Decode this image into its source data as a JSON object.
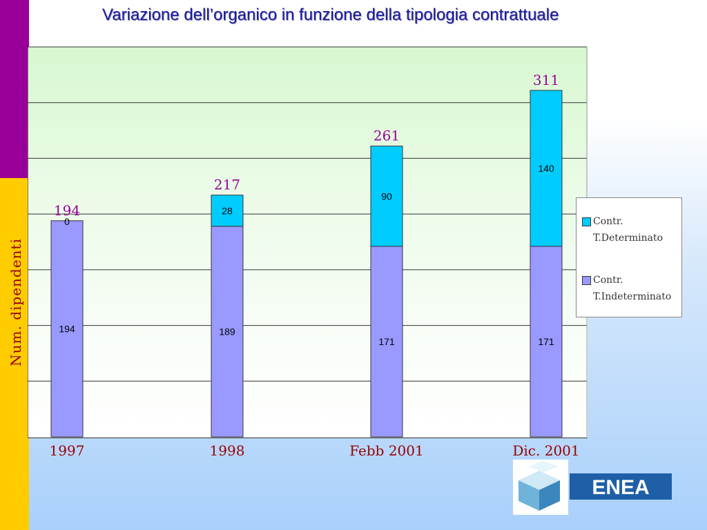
{
  "slide": {
    "title": "Variazione dell’organico in funzione della tipologia contrattuale"
  },
  "colors": {
    "indeterminato": "#9999ff",
    "determinato": "#00ccff",
    "total_label": "#990099",
    "axis_label": "#990000",
    "band_top": "#990099",
    "band_bottom": "#ffcc00"
  },
  "chart_data": {
    "type": "bar",
    "stacked": true,
    "title": "Variazione dell’organico in funzione della tipologia contrattuale",
    "ylabel": "Num.   dipendenti",
    "xlabel": "",
    "categories": [
      "1997",
      "1998",
      "Febb 2001",
      "Dic. 2001"
    ],
    "series": [
      {
        "name": "Contr. T.Indeterminato",
        "values": [
          194,
          189,
          171,
          171
        ]
      },
      {
        "name": "Contr. T.Determinato",
        "values": [
          0,
          28,
          90,
          140
        ]
      }
    ],
    "totals": [
      194,
      217,
      261,
      311
    ],
    "ylim": [
      0,
      350
    ],
    "gridlines": [
      50,
      100,
      150,
      200,
      250,
      300,
      350
    ],
    "grid": true,
    "legend": "right"
  },
  "logo": {
    "text": "ENEA",
    "icon": "enea-cube-logo"
  }
}
